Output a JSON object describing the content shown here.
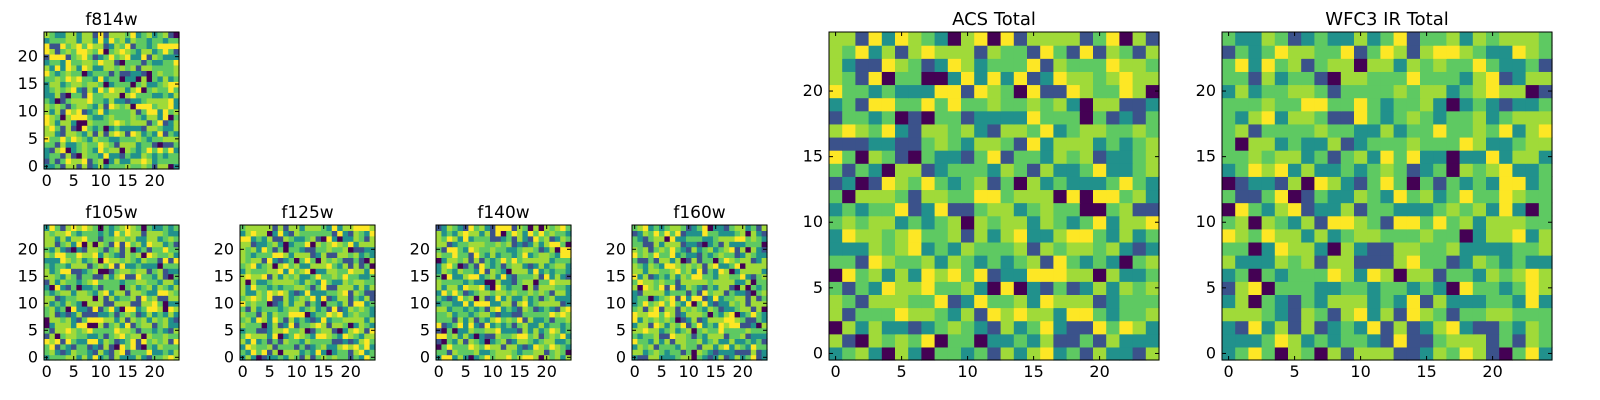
{
  "chart_data": [
    {
      "type": "heatmap",
      "title": "f814w",
      "shape": [
        25,
        25
      ],
      "colormap": "viridis",
      "xlim": [
        0,
        24
      ],
      "ylim": [
        0,
        24
      ],
      "xticks": [
        0,
        5,
        10,
        15,
        20
      ],
      "yticks": [
        0,
        5,
        10,
        15,
        20
      ],
      "seed": 11
    },
    {
      "type": "heatmap",
      "title": "f105w",
      "shape": [
        25,
        25
      ],
      "colormap": "viridis",
      "xlim": [
        0,
        24
      ],
      "ylim": [
        0,
        24
      ],
      "xticks": [
        0,
        5,
        10,
        15,
        20
      ],
      "yticks": [
        0,
        5,
        10,
        15,
        20
      ],
      "seed": 23
    },
    {
      "type": "heatmap",
      "title": "f125w",
      "shape": [
        25,
        25
      ],
      "colormap": "viridis",
      "xlim": [
        0,
        24
      ],
      "ylim": [
        0,
        24
      ],
      "xticks": [
        0,
        5,
        10,
        15,
        20
      ],
      "yticks": [
        0,
        5,
        10,
        15,
        20
      ],
      "seed": 37
    },
    {
      "type": "heatmap",
      "title": "f140w",
      "shape": [
        25,
        25
      ],
      "colormap": "viridis",
      "xlim": [
        0,
        24
      ],
      "ylim": [
        0,
        24
      ],
      "xticks": [
        0,
        5,
        10,
        15,
        20
      ],
      "yticks": [
        0,
        5,
        10,
        15,
        20
      ],
      "seed": 41
    },
    {
      "type": "heatmap",
      "title": "f160w",
      "shape": [
        25,
        25
      ],
      "colormap": "viridis",
      "xlim": [
        0,
        24
      ],
      "ylim": [
        0,
        24
      ],
      "xticks": [
        0,
        5,
        10,
        15,
        20
      ],
      "yticks": [
        0,
        5,
        10,
        15,
        20
      ],
      "seed": 53
    },
    {
      "type": "heatmap",
      "title": "ACS Total",
      "shape": [
        25,
        25
      ],
      "colormap": "viridis",
      "xlim": [
        0,
        24
      ],
      "ylim": [
        0,
        24
      ],
      "xticks": [
        0,
        5,
        10,
        15,
        20
      ],
      "yticks": [
        0,
        5,
        10,
        15,
        20
      ],
      "seed": 67
    },
    {
      "type": "heatmap",
      "title": "WFC3 IR Total",
      "shape": [
        25,
        25
      ],
      "colormap": "viridis",
      "xlim": [
        0,
        24
      ],
      "ylim": [
        0,
        24
      ],
      "xticks": [
        0,
        5,
        10,
        15,
        20
      ],
      "yticks": [
        0,
        5,
        10,
        15,
        20
      ],
      "seed": 79
    }
  ],
  "colors": {
    "colormap": [
      "#440154",
      "#3b528b",
      "#21918c",
      "#5ec962",
      "#a0da39",
      "#fde725"
    ]
  }
}
